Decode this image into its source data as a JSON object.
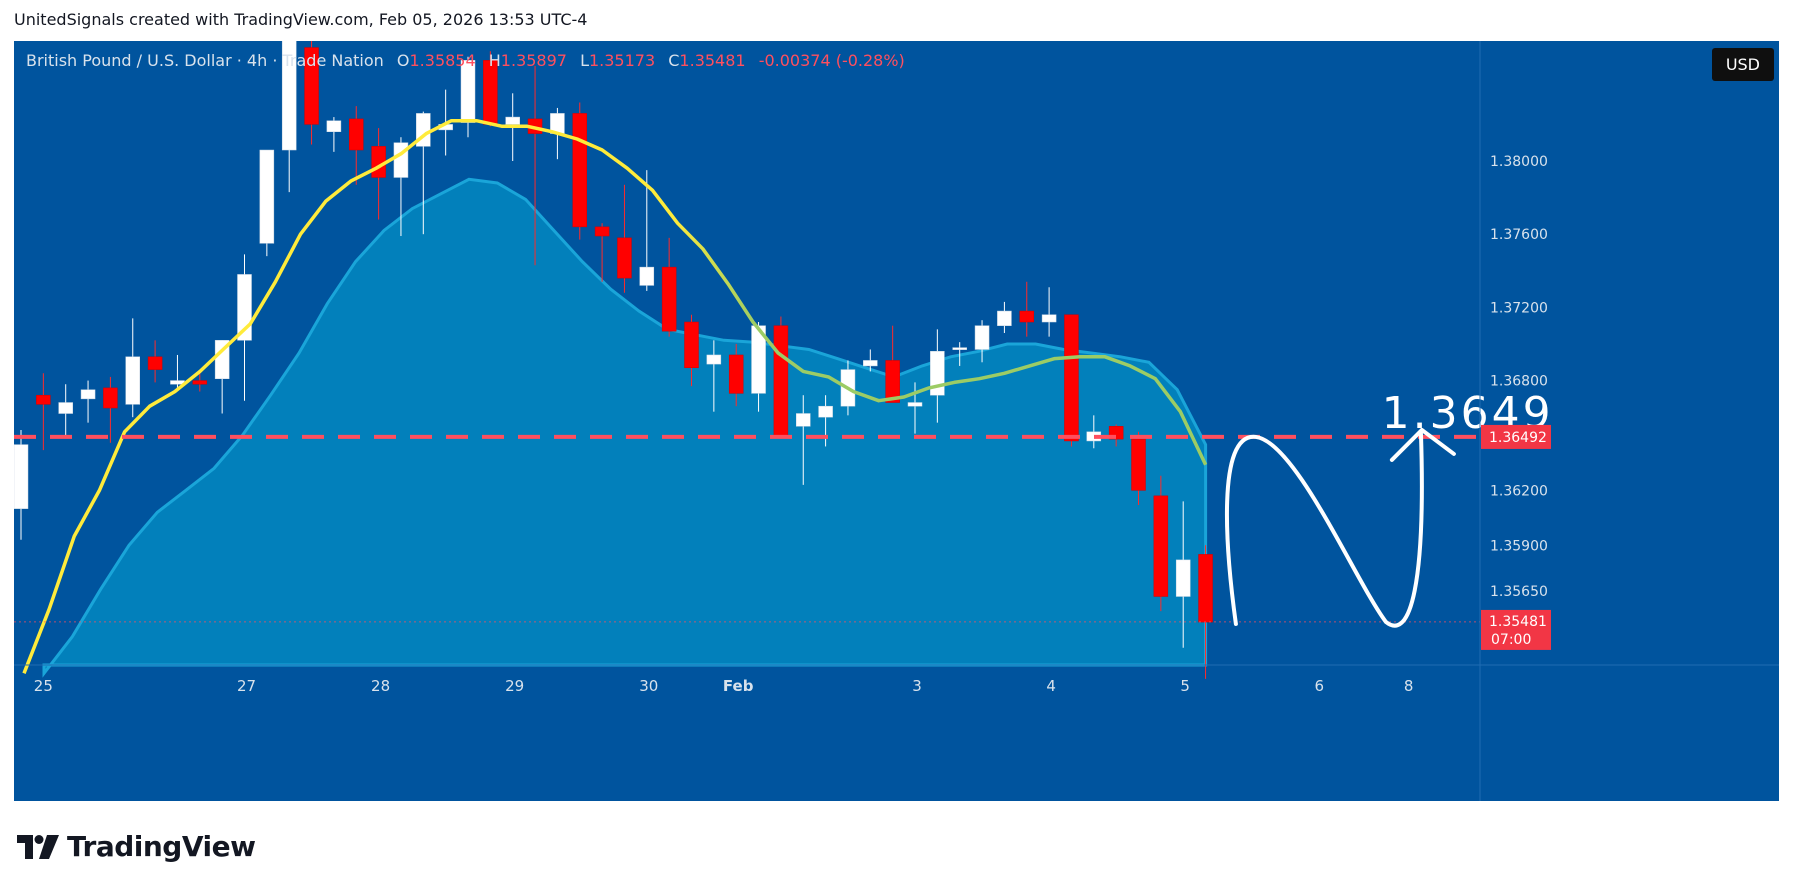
{
  "attribution": "UnitedSignals created with TradingView.com, Feb 05, 2026 13:53 UTC-4",
  "legend": {
    "symbol": "British Pound / U.S. Dollar · 4h · Trade Nation",
    "open_label": "O",
    "open": "1.35854",
    "high_label": "H",
    "high": "1.35897",
    "low_label": "L",
    "low": "1.35173",
    "close_label": "C",
    "close": "1.35481",
    "change": "-0.00374 (-0.28%)"
  },
  "currency_button": "USD",
  "annotation_text": "1.3649",
  "logo_text": "TradingView",
  "colors": {
    "background": "#00549e",
    "up": "#ffffff",
    "down": "#ff0000",
    "ema_fast": "#ffeb3b",
    "ema_fast_late": "#9ccc65",
    "ema_slow_fill": "#0288c0",
    "level_line": "#ff4f5e",
    "label_bg": "#f23645"
  },
  "chart_data": {
    "type": "candlestick",
    "timeframe": "4h",
    "y_axis_ticks": [
      "1.38000",
      "1.37600",
      "1.37200",
      "1.36800",
      "1.36492",
      "1.36200",
      "1.35900",
      "1.35650",
      "1.35481"
    ],
    "y_axis_scale_ticks": [
      1.38,
      1.376,
      1.372,
      1.368,
      1.362,
      1.359,
      1.3565
    ],
    "ylim": [
      1.3515,
      1.3915
    ],
    "x_axis_labels": [
      {
        "label": "25",
        "index": 1
      },
      {
        "label": "27",
        "index": 10
      },
      {
        "label": "28",
        "index": 16
      },
      {
        "label": "29",
        "index": 22
      },
      {
        "label": "30",
        "index": 28
      },
      {
        "label": "Feb",
        "index": 32
      },
      {
        "label": "3",
        "index": 40
      },
      {
        "label": "4",
        "index": 46
      },
      {
        "label": "5",
        "index": 52
      },
      {
        "label": "6",
        "index": 58
      },
      {
        "label": "8",
        "index": 62
      }
    ],
    "horizontal_level": {
      "value": 1.36492,
      "label": "1.36492"
    },
    "last_price": {
      "value": 1.35481,
      "label": "1.35481",
      "countdown": "07:00"
    },
    "candles": [
      {
        "o": 1.361,
        "h": 1.3653,
        "l": 1.3593,
        "c": 1.3645
      },
      {
        "o": 1.3672,
        "h": 1.3684,
        "l": 1.3642,
        "c": 1.3667
      },
      {
        "o": 1.3662,
        "h": 1.3678,
        "l": 1.365,
        "c": 1.3668
      },
      {
        "o": 1.367,
        "h": 1.368,
        "l": 1.3657,
        "c": 1.3675
      },
      {
        "o": 1.3676,
        "h": 1.3682,
        "l": 1.3646,
        "c": 1.3665
      },
      {
        "o": 1.3667,
        "h": 1.3714,
        "l": 1.366,
        "c": 1.3693
      },
      {
        "o": 1.3693,
        "h": 1.3702,
        "l": 1.3679,
        "c": 1.3686
      },
      {
        "o": 1.3678,
        "h": 1.3694,
        "l": 1.3676,
        "c": 1.368
      },
      {
        "o": 1.368,
        "h": 1.3685,
        "l": 1.3674,
        "c": 1.3678
      },
      {
        "o": 1.3681,
        "h": 1.3702,
        "l": 1.3662,
        "c": 1.3702
      },
      {
        "o": 1.3702,
        "h": 1.3749,
        "l": 1.3669,
        "c": 1.3738
      },
      {
        "o": 1.3755,
        "h": 1.3803,
        "l": 1.3748,
        "c": 1.3806
      },
      {
        "o": 1.3806,
        "h": 1.39,
        "l": 1.3783,
        "c": 1.3866
      },
      {
        "o": 1.3862,
        "h": 1.3869,
        "l": 1.3809,
        "c": 1.382
      },
      {
        "o": 1.3816,
        "h": 1.3824,
        "l": 1.3805,
        "c": 1.3822
      },
      {
        "o": 1.3823,
        "h": 1.383,
        "l": 1.3787,
        "c": 1.3806
      },
      {
        "o": 1.3808,
        "h": 1.3818,
        "l": 1.3768,
        "c": 1.3791
      },
      {
        "o": 1.3791,
        "h": 1.3813,
        "l": 1.3759,
        "c": 1.381
      },
      {
        "o": 1.3808,
        "h": 1.3827,
        "l": 1.376,
        "c": 1.3826
      },
      {
        "o": 1.3817,
        "h": 1.3839,
        "l": 1.3803,
        "c": 1.382
      },
      {
        "o": 1.3821,
        "h": 1.3857,
        "l": 1.3813,
        "c": 1.3855
      },
      {
        "o": 1.3855,
        "h": 1.386,
        "l": 1.3819,
        "c": 1.382
      },
      {
        "o": 1.382,
        "h": 1.3837,
        "l": 1.38,
        "c": 1.3824
      },
      {
        "o": 1.3823,
        "h": 1.3852,
        "l": 1.3743,
        "c": 1.3815
      },
      {
        "o": 1.3815,
        "h": 1.3829,
        "l": 1.3801,
        "c": 1.3826
      },
      {
        "o": 1.3826,
        "h": 1.3832,
        "l": 1.3757,
        "c": 1.3764
      },
      {
        "o": 1.3764,
        "h": 1.3766,
        "l": 1.3734,
        "c": 1.3759
      },
      {
        "o": 1.3758,
        "h": 1.3787,
        "l": 1.3728,
        "c": 1.3736
      },
      {
        "o": 1.3732,
        "h": 1.3795,
        "l": 1.3729,
        "c": 1.3742
      },
      {
        "o": 1.3742,
        "h": 1.3758,
        "l": 1.3704,
        "c": 1.3707
      },
      {
        "o": 1.3712,
        "h": 1.3716,
        "l": 1.3677,
        "c": 1.3687
      },
      {
        "o": 1.3689,
        "h": 1.3702,
        "l": 1.3663,
        "c": 1.3694
      },
      {
        "o": 1.3694,
        "h": 1.37,
        "l": 1.3666,
        "c": 1.3673
      },
      {
        "o": 1.3673,
        "h": 1.3712,
        "l": 1.3663,
        "c": 1.371
      },
      {
        "o": 1.371,
        "h": 1.3715,
        "l": 1.3651,
        "c": 1.365
      },
      {
        "o": 1.3655,
        "h": 1.3672,
        "l": 1.3623,
        "c": 1.3662
      },
      {
        "o": 1.366,
        "h": 1.3672,
        "l": 1.3644,
        "c": 1.3666
      },
      {
        "o": 1.3666,
        "h": 1.3691,
        "l": 1.3661,
        "c": 1.3686
      },
      {
        "o": 1.3688,
        "h": 1.3697,
        "l": 1.3685,
        "c": 1.3691
      },
      {
        "o": 1.3691,
        "h": 1.371,
        "l": 1.3669,
        "c": 1.3668
      },
      {
        "o": 1.3666,
        "h": 1.3679,
        "l": 1.3651,
        "c": 1.3668
      },
      {
        "o": 1.3672,
        "h": 1.3708,
        "l": 1.3657,
        "c": 1.3696
      },
      {
        "o": 1.3697,
        "h": 1.3701,
        "l": 1.3688,
        "c": 1.3698
      },
      {
        "o": 1.3697,
        "h": 1.3713,
        "l": 1.369,
        "c": 1.371
      },
      {
        "o": 1.371,
        "h": 1.3723,
        "l": 1.3706,
        "c": 1.3718
      },
      {
        "o": 1.3718,
        "h": 1.3734,
        "l": 1.3704,
        "c": 1.3712
      },
      {
        "o": 1.3712,
        "h": 1.3731,
        "l": 1.3704,
        "c": 1.3716
      },
      {
        "o": 1.3716,
        "h": 1.3716,
        "l": 1.3644,
        "c": 1.3647
      },
      {
        "o": 1.3647,
        "h": 1.3661,
        "l": 1.3643,
        "c": 1.3652
      },
      {
        "o": 1.3655,
        "h": 1.3656,
        "l": 1.3644,
        "c": 1.3648
      },
      {
        "o": 1.3648,
        "h": 1.3652,
        "l": 1.3612,
        "c": 1.362
      },
      {
        "o": 1.3617,
        "h": 1.3628,
        "l": 1.3554,
        "c": 1.3562
      },
      {
        "o": 1.3562,
        "h": 1.3614,
        "l": 1.3534,
        "c": 1.3582
      },
      {
        "o": 1.3585,
        "h": 1.359,
        "l": 1.3517,
        "c": 1.3548
      }
    ],
    "ema_fast": [
      1.352,
      1.3555,
      1.3595,
      1.362,
      1.3652,
      1.3666,
      1.3674,
      1.3685,
      1.3698,
      1.3711,
      1.3734,
      1.376,
      1.3778,
      1.3789,
      1.3796,
      1.3804,
      1.3815,
      1.3822,
      1.3822,
      1.3819,
      1.3819,
      1.3816,
      1.3812,
      1.3806,
      1.3796,
      1.3784,
      1.3766,
      1.3752,
      1.3733,
      1.3712,
      1.3695,
      1.3685,
      1.3682,
      1.3674,
      1.3669,
      1.3671,
      1.3676,
      1.3679,
      1.3681,
      1.3684,
      1.3688,
      1.3692,
      1.3693,
      1.3693,
      1.3688,
      1.3681,
      1.3663,
      1.3634
    ],
    "ema_slow": [
      1.352,
      1.354,
      1.3566,
      1.359,
      1.3608,
      1.362,
      1.3632,
      1.365,
      1.3672,
      1.3695,
      1.3722,
      1.3745,
      1.3762,
      1.3774,
      1.3782,
      1.379,
      1.3788,
      1.3779,
      1.3762,
      1.3745,
      1.373,
      1.3718,
      1.3708,
      1.3705,
      1.3702,
      1.3701,
      1.3699,
      1.3697,
      1.3692,
      1.3687,
      1.3682,
      1.3688,
      1.3693,
      1.3696,
      1.37,
      1.37,
      1.3697,
      1.3695,
      1.3693,
      1.369,
      1.3675,
      1.3645
    ]
  }
}
